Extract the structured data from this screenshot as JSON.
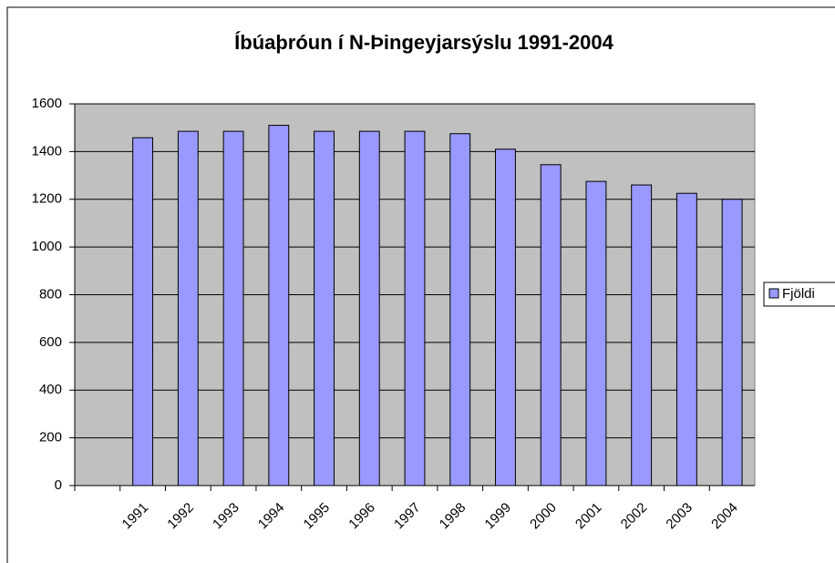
{
  "chart_data": {
    "type": "bar",
    "title": "Íbúaþróun í N-Þingeyjarsýslu 1991-2004",
    "categories": [
      null,
      "1991",
      "1992",
      "1993",
      "1994",
      "1995",
      "1996",
      "1997",
      "1998",
      "1999",
      "2000",
      "2001",
      "2002",
      "2003",
      "2004"
    ],
    "series": [
      {
        "name": "Fjöldi",
        "color": "#9999ff",
        "values": [
          null,
          1458,
          1485,
          1485,
          1510,
          1485,
          1485,
          1485,
          1475,
          1410,
          1345,
          1275,
          1260,
          1225,
          1200
        ]
      }
    ],
    "ylim": [
      0,
      1600
    ],
    "yticks": [
      0,
      200,
      400,
      600,
      800,
      1000,
      1200,
      1400,
      1600
    ],
    "grid": true,
    "legend": "right"
  }
}
